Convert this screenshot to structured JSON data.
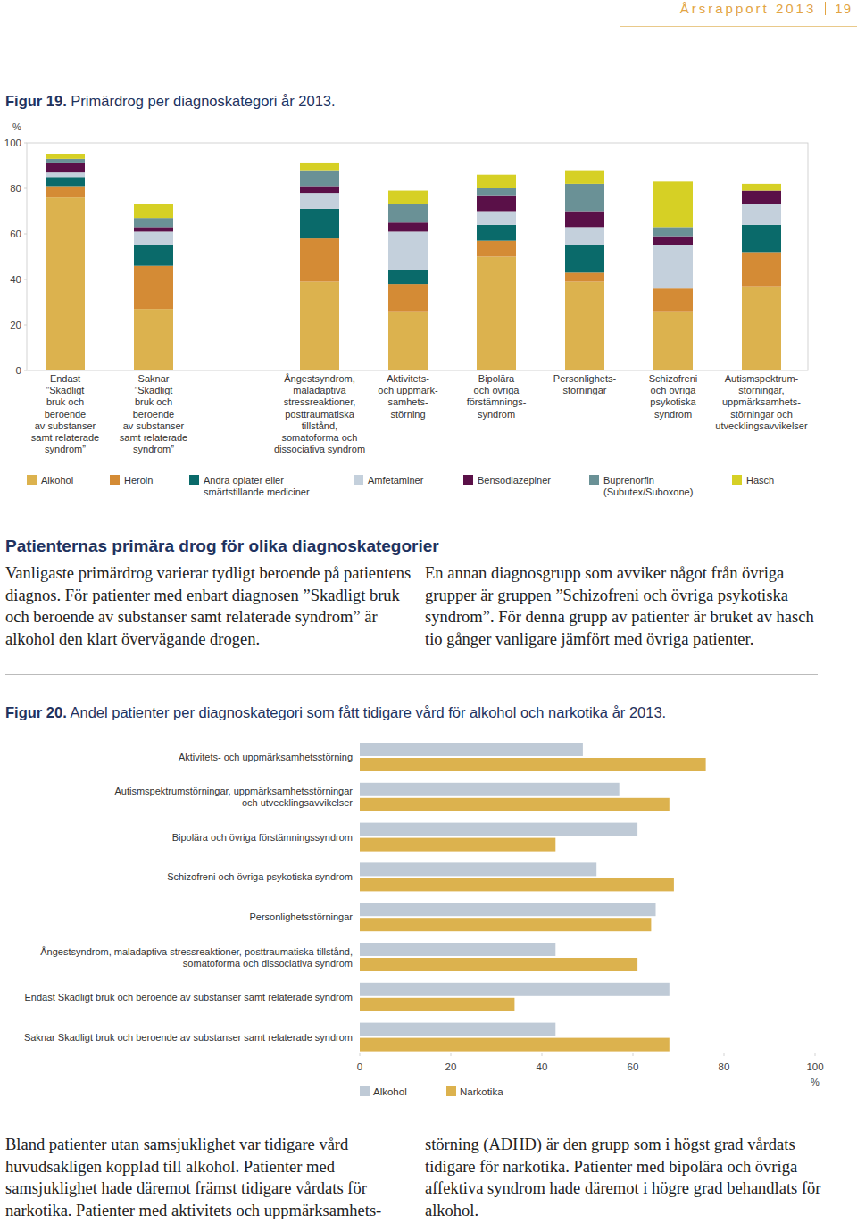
{
  "header": {
    "title": "Årsrapport 2013",
    "page": "19"
  },
  "chart_data": [
    {
      "type": "bar",
      "stacked": true,
      "figure_label": "Figur 19.",
      "title": "Primärdrog per diagnoskategori år 2013.",
      "y_label": "%",
      "categories": [
        "Endast\n”Skadligt\nbruk och\nberoende\nav substanser\nsamt relaterade\nsyndrom”",
        "Saknar\n”Skadligt\nbruk och\nberoende\nav substanser\nsamt relaterade\nsyndrom”",
        "Ångestsyndrom,\nmaladaptiva\nstressreaktioner,\nposttraumatiska\ntillstånd,\nsomatoforma och\ndissociativa syndrom",
        "Aktivitets-\noch uppmärk-\nsamhets-\nstörning",
        "Bipolära\noch övriga\nförstämnings-\nsyndrom",
        "Personlighets-\nstörningar",
        "Schizofreni\noch övriga\npsykotiska\nsyndrom",
        "Autismspektrum-\nstörningar,\nuppmärksamhets-\nstörningar och\nutvecklingsavvikelser"
      ],
      "series": [
        {
          "name": "Alkohol",
          "color": "#dcb24e",
          "values": [
            76,
            27,
            39,
            26,
            50,
            39,
            26,
            37
          ]
        },
        {
          "name": "Heroin",
          "color": "#d48b35",
          "values": [
            5,
            19,
            19,
            12,
            7,
            4,
            10,
            15
          ]
        },
        {
          "name": "Andra opiater eller\nsmärtstillande mediciner",
          "color": "#0a6a6a",
          "values": [
            4,
            9,
            13,
            6,
            7,
            12,
            0,
            12
          ]
        },
        {
          "name": "Amfetaminer",
          "color": "#c4d0dc",
          "values": [
            2,
            6,
            7,
            17,
            6,
            8,
            19,
            9
          ]
        },
        {
          "name": "Bensodiazepiner",
          "color": "#5a1048",
          "values": [
            4,
            2,
            3,
            4,
            7,
            7,
            4,
            6
          ]
        },
        {
          "name": "Buprenorfin\n(Subutex/Suboxone)",
          "color": "#6a9196",
          "values": [
            2,
            4,
            7,
            8,
            3,
            12,
            4,
            0
          ]
        },
        {
          "name": "Hasch",
          "color": "#d6d025",
          "values": [
            2,
            6,
            3,
            6,
            6,
            6,
            20,
            3
          ]
        }
      ],
      "ylim": [
        0,
        100
      ],
      "yticks": [
        0,
        20,
        40,
        60,
        80,
        100
      ],
      "legend": "bottom"
    },
    {
      "type": "bar",
      "orientation": "horizontal",
      "figure_label": "Figur 20.",
      "title": "Andel patienter per diagnoskategori som fått tidigare vård för alkohol och narkotika år 2013.",
      "x_label": "%",
      "categories": [
        "Aktivitets- och uppmärksamhetsstörning",
        "Autismspektrumstörningar, uppmärksamhetsstörningar\noch utvecklingsavvikelser",
        "Bipolära och övriga förstämningssyndrom",
        "Schizofreni och övriga psykotiska syndrom",
        "Personlighetsstörningar",
        "Ångestsyndrom, maladaptiva stressreaktioner, posttraumatiska tillstånd,\nsomatoforma och dissociativa syndrom",
        "Endast Skadligt bruk och beroende av substanser samt relaterade syndrom",
        "Saknar Skadligt bruk och beroende av substanser samt relaterade syndrom"
      ],
      "series": [
        {
          "name": "Alkohol",
          "color": "#bfcad6",
          "values": [
            49,
            57,
            61,
            52,
            65,
            43,
            68,
            43
          ]
        },
        {
          "name": "Narkotika",
          "color": "#dcb24e",
          "values": [
            76,
            68,
            43,
            69,
            64,
            61,
            34,
            68
          ]
        }
      ],
      "xlim": [
        0,
        100
      ],
      "xticks": [
        0,
        20,
        40,
        60,
        80,
        100
      ],
      "legend": "bottom"
    }
  ],
  "section": {
    "heading": "Patienternas primära drog för olika diagnoskategorier",
    "paragraphs": [
      "Vanligaste primärdrog varierar tydligt beroende på patientens diagnos. För patienter med enbart diagnosen ”Skadligt bruk och beroende av substanser samt relaterade syndrom” är alkohol den klart övervägande drogen.",
      "En annan diagnosgrupp som avviker något från övriga grupper är gruppen ”Schizofreni och övriga psykotiska syndrom”. För denna grupp av patienter är bruket av hasch tio gånger vanligare jämfört med övriga patienter."
    ]
  },
  "closing": {
    "paragraphs": [
      "Bland patienter utan samsjuklighet var tidigare vård huvudsakligen kopplad till alkohol. Patienter med samsjuklighet hade däremot främst tidigare vårdats för narkotika. Patienter med aktivitets och uppmärksamhets-",
      "störning (ADHD) är den grupp som i högst grad vårdats tidigare för narkotika. Patienter med bipolära och övriga affektiva syndrom hade däremot i högre grad behandlats för alkohol."
    ]
  }
}
